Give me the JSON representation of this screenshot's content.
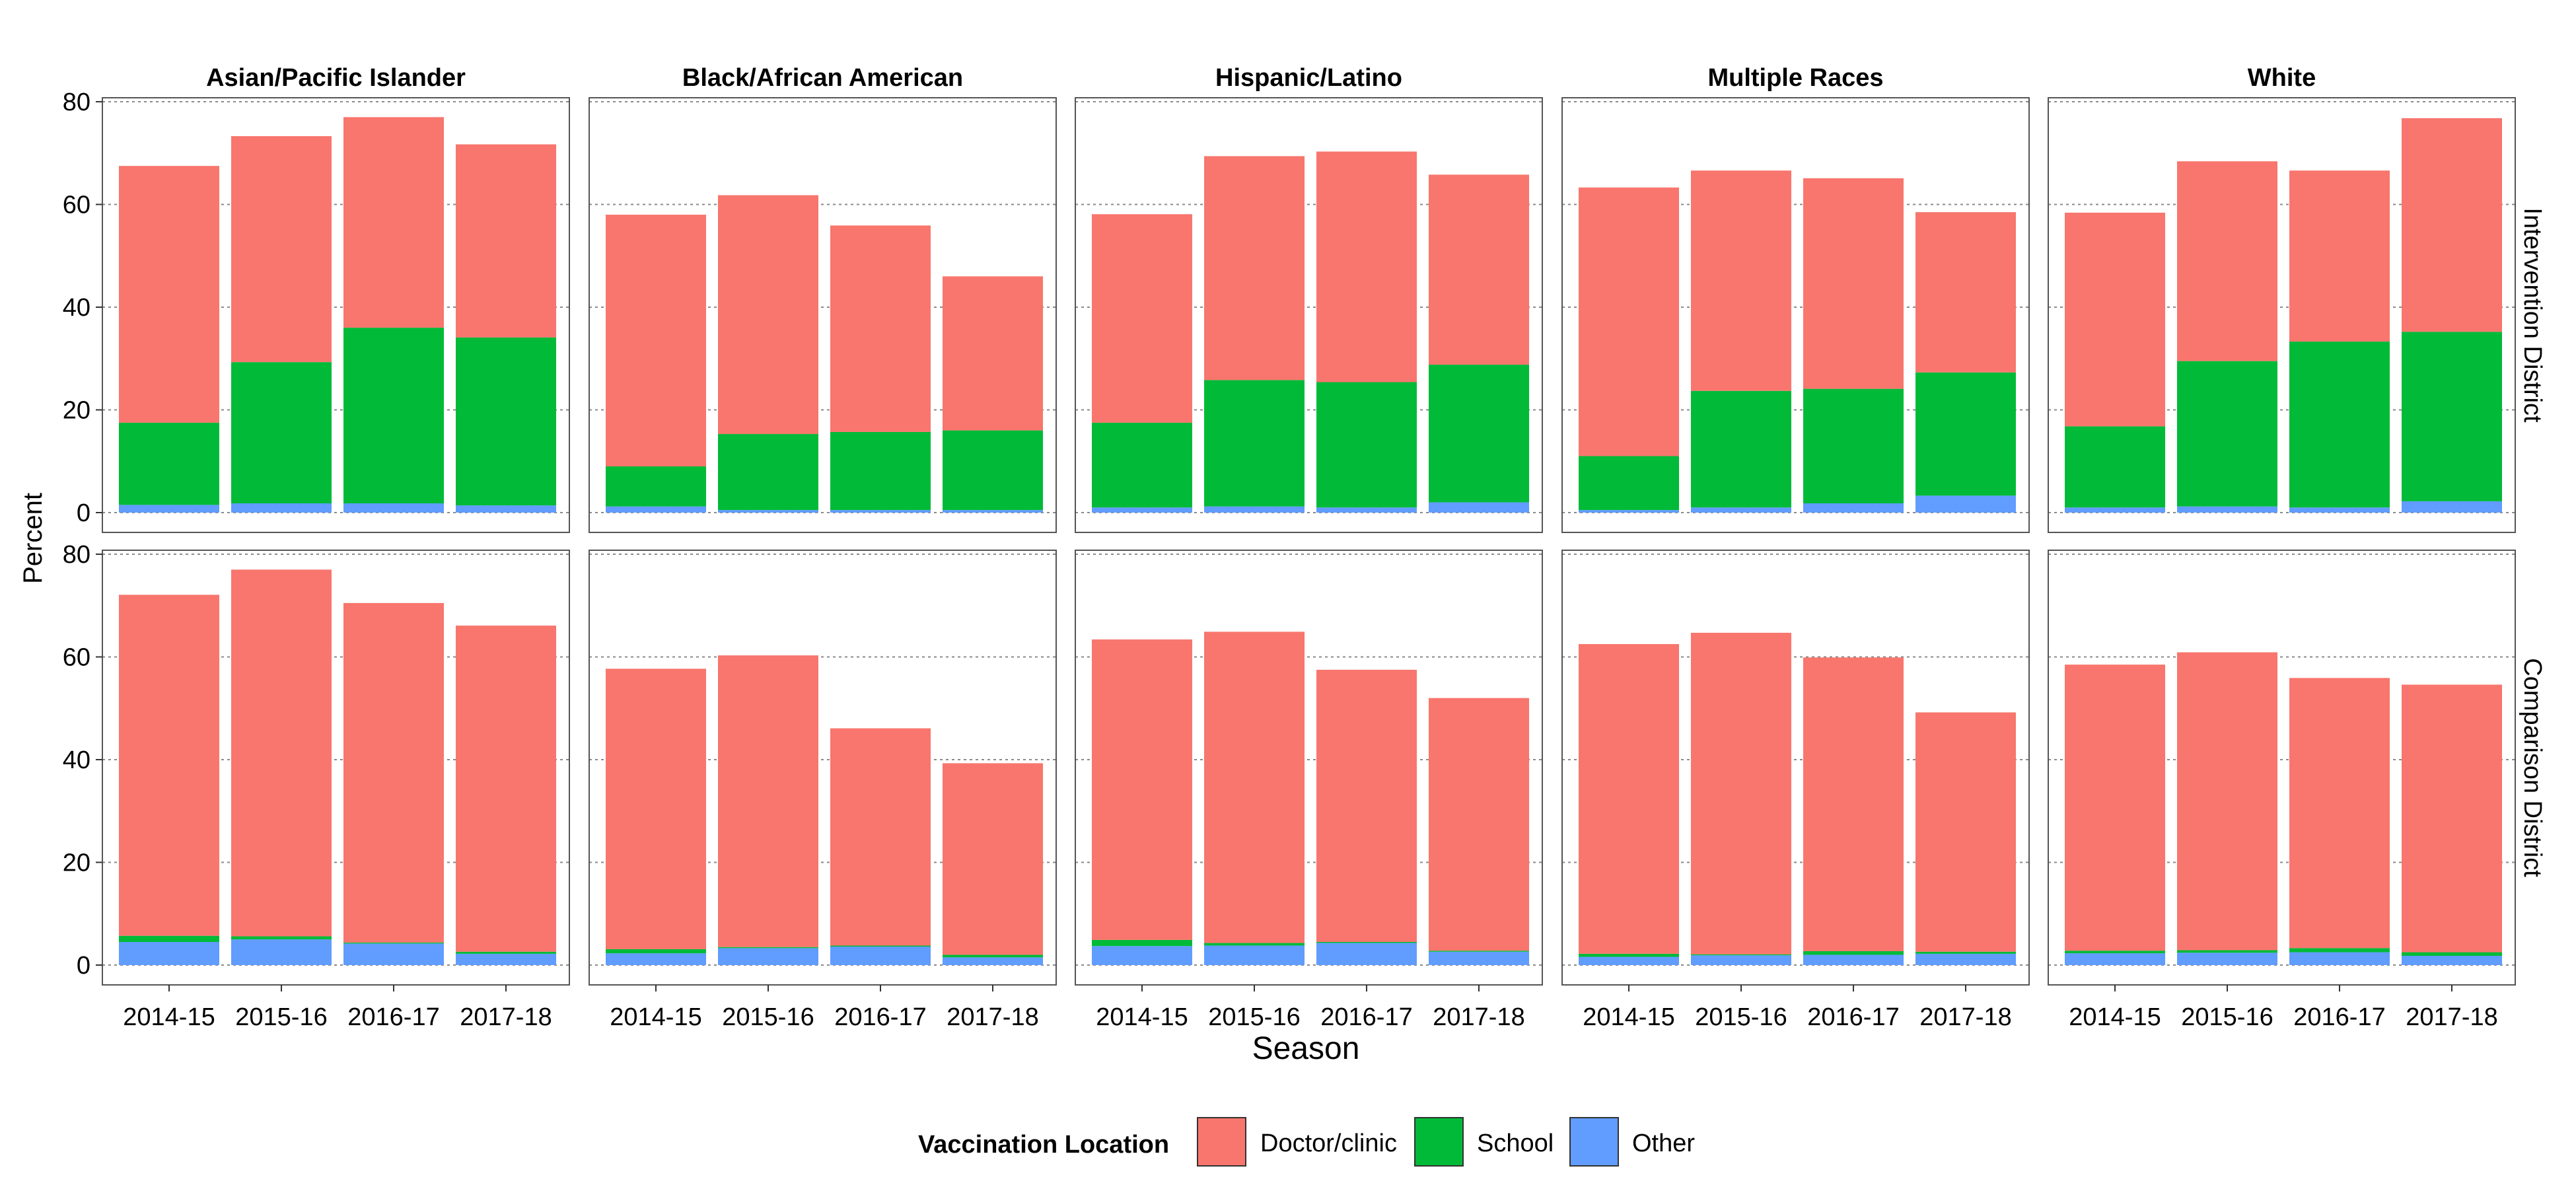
{
  "chart_data": {
    "type": "bar",
    "stacked": true,
    "facets": {
      "columns": [
        "Asian/Pacific Islander",
        "Black/African American",
        "Hispanic/Latino",
        "Multiple Races",
        "White"
      ],
      "rows": [
        "Intervention District",
        "Comparison District"
      ]
    },
    "categories": [
      "2014-15",
      "2015-16",
      "2016-17",
      "2017-18"
    ],
    "xlabel": "Season",
    "ylabel": "Percent",
    "ylim": [
      0,
      80
    ],
    "yticks": [
      "0",
      "20",
      "40",
      "60",
      "80"
    ],
    "grid": "horizontal dotted",
    "legend": {
      "title": "Vaccination Location",
      "position": "bottom",
      "entries": [
        "Doctor/clinic",
        "School",
        "Other"
      ]
    },
    "colors": {
      "Doctor/clinic": "#F8766D",
      "School": "#00BA38",
      "Other": "#619CFF"
    },
    "panels": [
      {
        "row": "Intervention District",
        "column": "Asian/Pacific Islander",
        "series": {
          "Other": [
            1.5,
            1.8,
            1.8,
            1.4
          ],
          "School": [
            16,
            27.5,
            34.2,
            32.7
          ],
          "Doctor/clinic": [
            50,
            44,
            41,
            37.6
          ]
        }
      },
      {
        "row": "Intervention District",
        "column": "Black/African American",
        "series": {
          "Other": [
            1.2,
            0.5,
            0.5,
            0.5
          ],
          "School": [
            7.8,
            14.8,
            15.2,
            15.5
          ],
          "Doctor/clinic": [
            49,
            46.5,
            40.2,
            30
          ]
        }
      },
      {
        "row": "Intervention District",
        "column": "Hispanic/Latino",
        "series": {
          "Other": [
            1,
            1.2,
            1,
            2
          ],
          "School": [
            16.5,
            24.6,
            24.4,
            26.8
          ],
          "Doctor/clinic": [
            40.6,
            43.6,
            44.9,
            37
          ]
        }
      },
      {
        "row": "Intervention District",
        "column": "Multiple Races",
        "series": {
          "Other": [
            0.5,
            1,
            1.8,
            3.3
          ],
          "School": [
            10.5,
            22.7,
            22.3,
            24
          ],
          "Doctor/clinic": [
            52.3,
            42.9,
            41,
            31.2
          ]
        }
      },
      {
        "row": "Intervention District",
        "column": "White",
        "series": {
          "Other": [
            1,
            1.2,
            1,
            2.2
          ],
          "School": [
            15.8,
            28.3,
            32.3,
            33
          ],
          "Doctor/clinic": [
            41.6,
            38.9,
            33.3,
            41.6
          ]
        }
      },
      {
        "row": "Comparison District",
        "column": "Asian/Pacific Islander",
        "series": {
          "Other": [
            4.5,
            5,
            4.2,
            2.2
          ],
          "School": [
            1.2,
            0.6,
            0.2,
            0.4
          ],
          "Doctor/clinic": [
            66.4,
            71.4,
            66.1,
            63.5
          ]
        }
      },
      {
        "row": "Comparison District",
        "column": "Black/African American",
        "series": {
          "Other": [
            2.3,
            3.3,
            3.6,
            1.5
          ],
          "School": [
            0.8,
            0.2,
            0.2,
            0.5
          ],
          "Doctor/clinic": [
            54.6,
            56.8,
            42.3,
            37.3
          ]
        }
      },
      {
        "row": "Comparison District",
        "column": "Hispanic/Latino",
        "series": {
          "Other": [
            3.7,
            3.8,
            4.3,
            2.6
          ],
          "School": [
            1.2,
            0.5,
            0.2,
            0.2
          ],
          "Doctor/clinic": [
            58.5,
            60.6,
            53,
            49.2
          ]
        }
      },
      {
        "row": "Comparison District",
        "column": "Multiple Races",
        "series": {
          "Other": [
            1.6,
            1.9,
            2,
            2.2
          ],
          "School": [
            0.6,
            0.2,
            0.7,
            0.4
          ],
          "Doctor/clinic": [
            60.3,
            62.6,
            57.2,
            46.6
          ]
        }
      },
      {
        "row": "Comparison District",
        "column": "White",
        "series": {
          "Other": [
            2.3,
            2.4,
            2.5,
            1.8
          ],
          "School": [
            0.5,
            0.5,
            0.8,
            0.7
          ],
          "Doctor/clinic": [
            55.7,
            58,
            52.6,
            52.1
          ]
        }
      }
    ]
  }
}
